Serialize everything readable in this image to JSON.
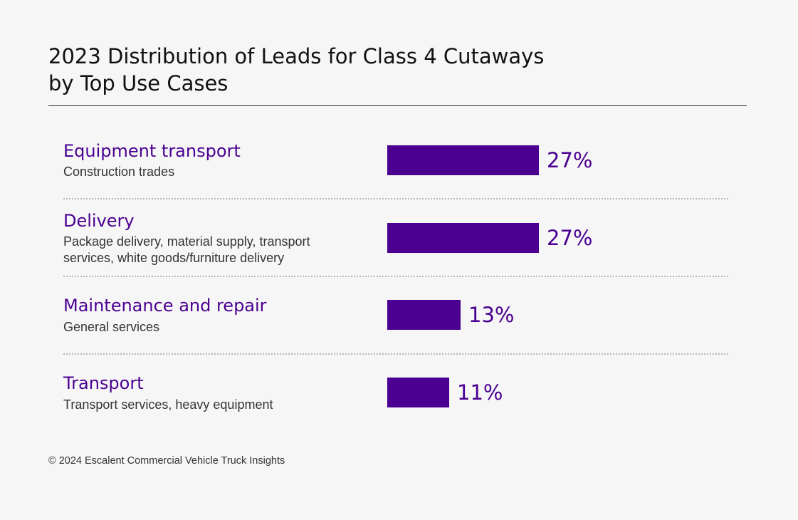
{
  "chart_data": {
    "type": "bar",
    "orientation": "horizontal",
    "title": "2023 Distribution of Leads for Class 4 Cutaways by Top Use Cases",
    "title_lines": [
      "2023 Distribution of Leads for Class 4 Cutaways",
      "by Top Use Cases"
    ],
    "categories": [
      "Equipment transport",
      "Delivery",
      "Maintenance and repair",
      "Transport"
    ],
    "descriptions": [
      "Construction trades",
      "Package delivery, material supply, transport services, white goods/furniture delivery",
      "General services",
      "Transport services, heavy equipment"
    ],
    "values": [
      27,
      27,
      13,
      11
    ],
    "value_labels": [
      "27%",
      "27%",
      "13%",
      "11%"
    ],
    "unit": "%",
    "xlim": [
      0,
      27
    ],
    "bar_color": "#4b0092",
    "label_color": "#4b0092"
  },
  "footer": {
    "source": "© 2024 Escalent Commercial Vehicle Truck Insights"
  }
}
